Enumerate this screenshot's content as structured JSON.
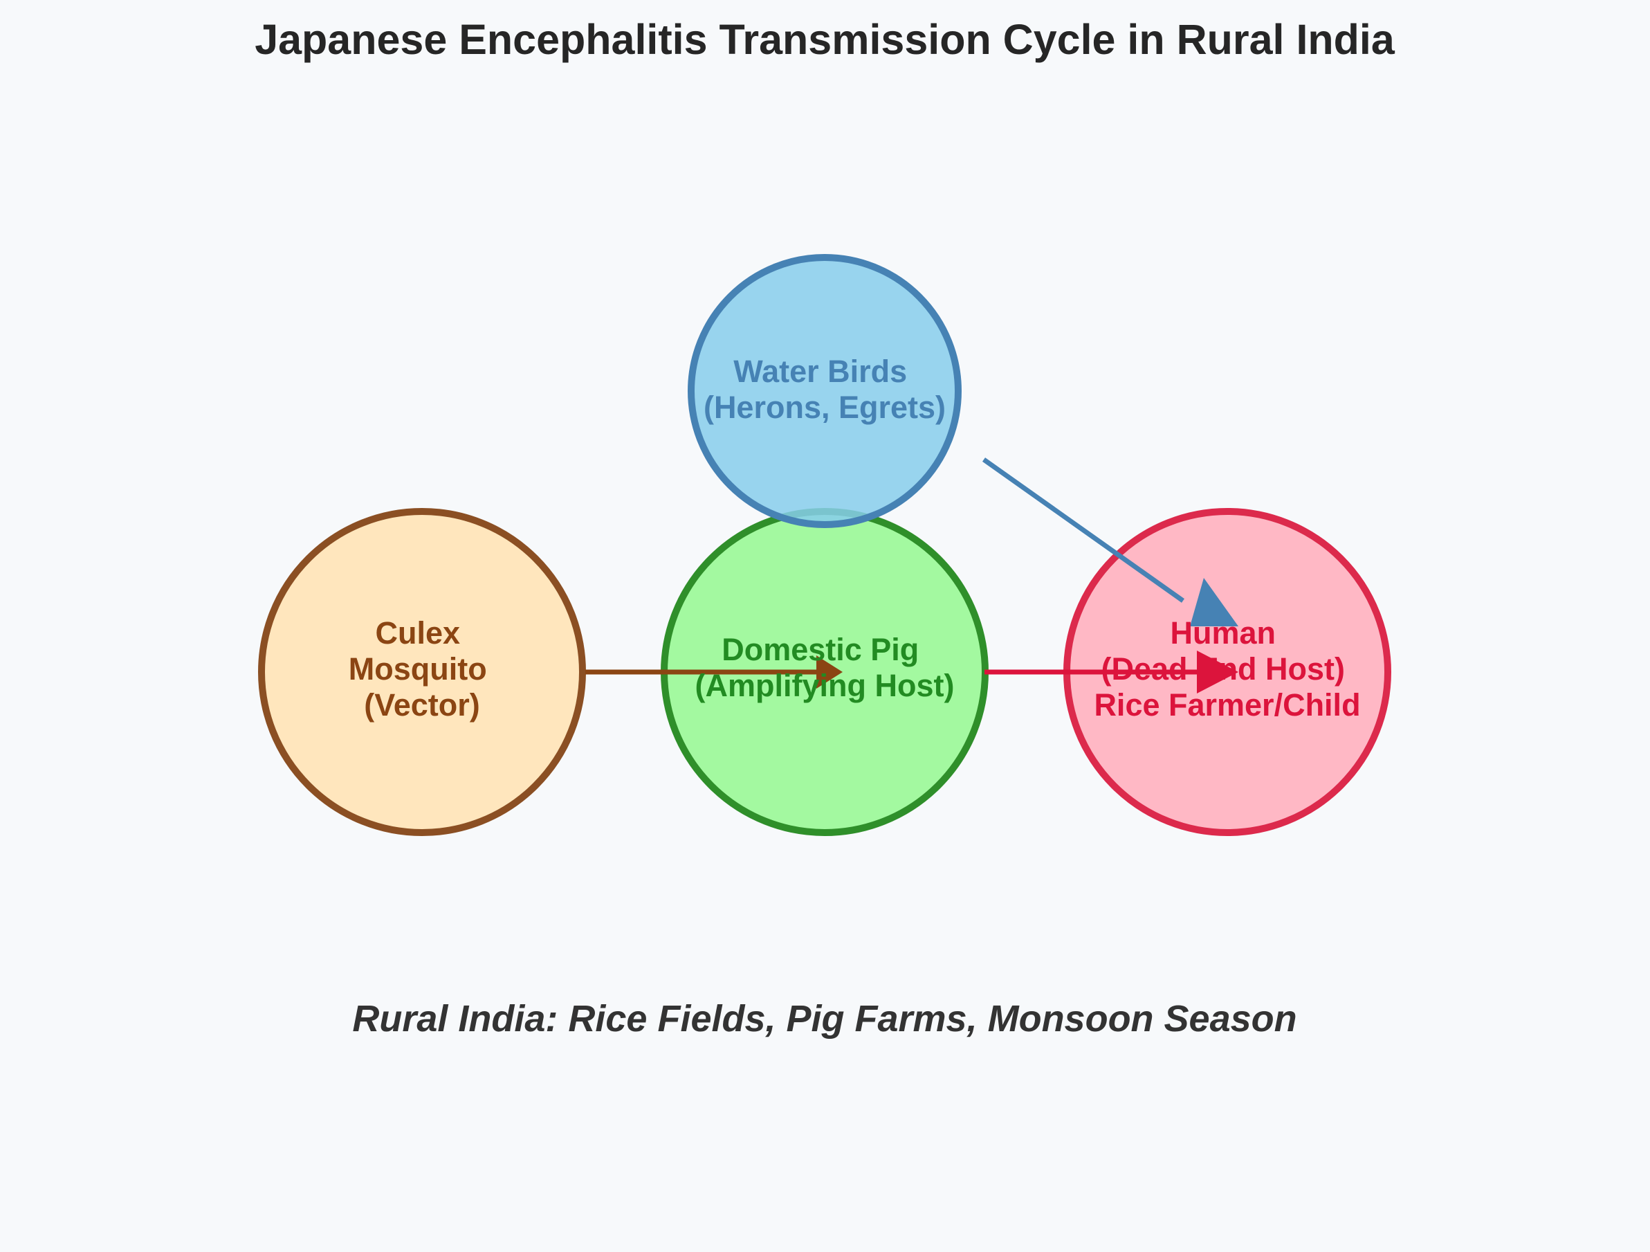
{
  "title": "Japanese Encephalitis Transmission Cycle in Rural India",
  "caption": "Rural India: Rice Fields, Pig Farms, Monsoon Season",
  "nodes": {
    "mosquito": {
      "lines": [
        "Culex",
        "Mosquito",
        "(Vector)"
      ],
      "fill": "#ffe6bd",
      "stroke": "#8b4f23",
      "text_color": "#8b4513"
    },
    "pig": {
      "lines": [
        "Domestic Pig",
        "(Amplifying Host)"
      ],
      "fill": "#a3f9a0",
      "stroke": "#2f8f2a",
      "text_color": "#228b22"
    },
    "birds": {
      "lines": [
        "Water Birds",
        "(Herons, Egrets)"
      ],
      "fill": "#87ceeb",
      "stroke": "#4682b4",
      "text_color": "#4682b4"
    },
    "human": {
      "lines": [
        "Human",
        "(Dead-End Host)",
        "Rice Farmer/Child"
      ],
      "fill": "#ffb8c5",
      "stroke": "#dc2a4c",
      "text_color": "#dc143c"
    }
  },
  "arrows": {
    "mosquito_to_pig": {
      "color": "#8b4513"
    },
    "pig_to_human": {
      "color": "#dc143c"
    },
    "birds_to_human": {
      "color": "#4682b4"
    }
  }
}
